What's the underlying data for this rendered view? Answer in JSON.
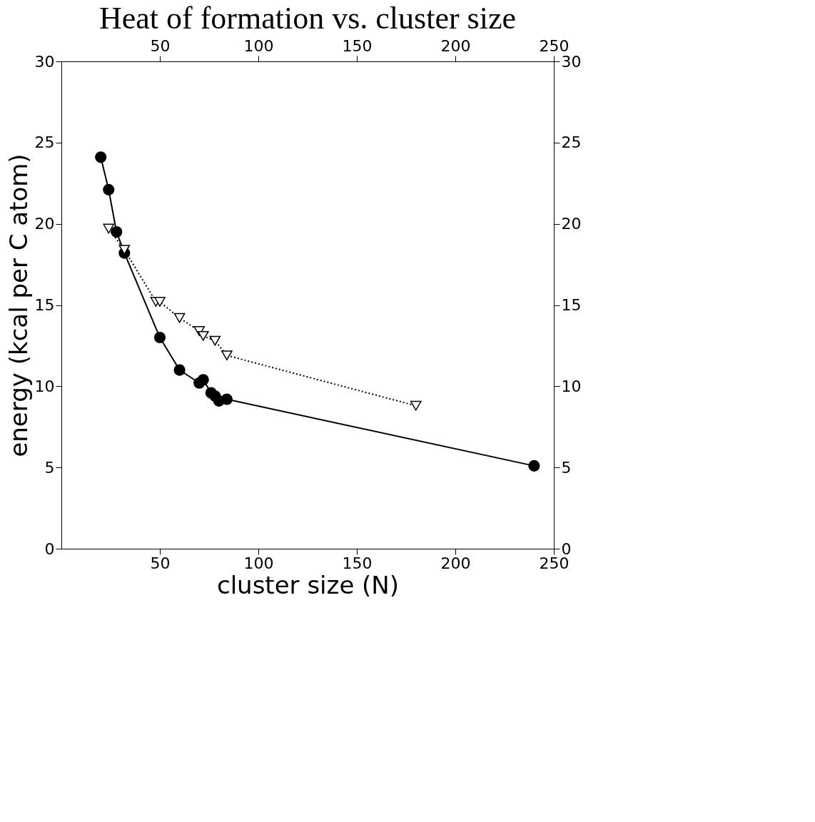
{
  "chart_data": {
    "type": "line",
    "title": "Heat of formation vs. cluster size",
    "xlabel": "cluster size (N)",
    "ylabel": "energy (kcal per C atom)",
    "xlim": [
      0,
      250
    ],
    "xticks": [
      50,
      100,
      150,
      200,
      250
    ],
    "ylim": [
      0,
      30
    ],
    "yticks": [
      0,
      5,
      10,
      15,
      20,
      25,
      30
    ],
    "x2lim": [
      0,
      250
    ],
    "x2ticks": [
      50,
      100,
      150,
      200,
      250
    ],
    "y2lim": [
      0,
      30
    ],
    "y2ticks": [
      0,
      5,
      10,
      15,
      20,
      25,
      30
    ],
    "grid": false,
    "series": [
      {
        "color": "#000000",
        "marker": "circle",
        "line_style": "solid",
        "x": [
          20,
          24,
          28,
          32,
          50,
          60,
          70,
          72,
          76,
          78,
          80,
          84,
          240
        ],
        "values": [
          24.1,
          22.1,
          19.5,
          18.2,
          13.0,
          11.0,
          10.2,
          10.4,
          9.6,
          9.4,
          9.1,
          9.2,
          5.1
        ]
      },
      {
        "color": "#000000",
        "marker": "triangle",
        "line_style": "dotted",
        "axis": "y2",
        "x": [
          24,
          32,
          48,
          50,
          60,
          70,
          72,
          78,
          84,
          180
        ],
        "values": [
          19.7,
          18.4,
          15.2,
          15.2,
          14.2,
          13.4,
          13.1,
          12.8,
          11.9,
          8.8
        ]
      }
    ]
  }
}
